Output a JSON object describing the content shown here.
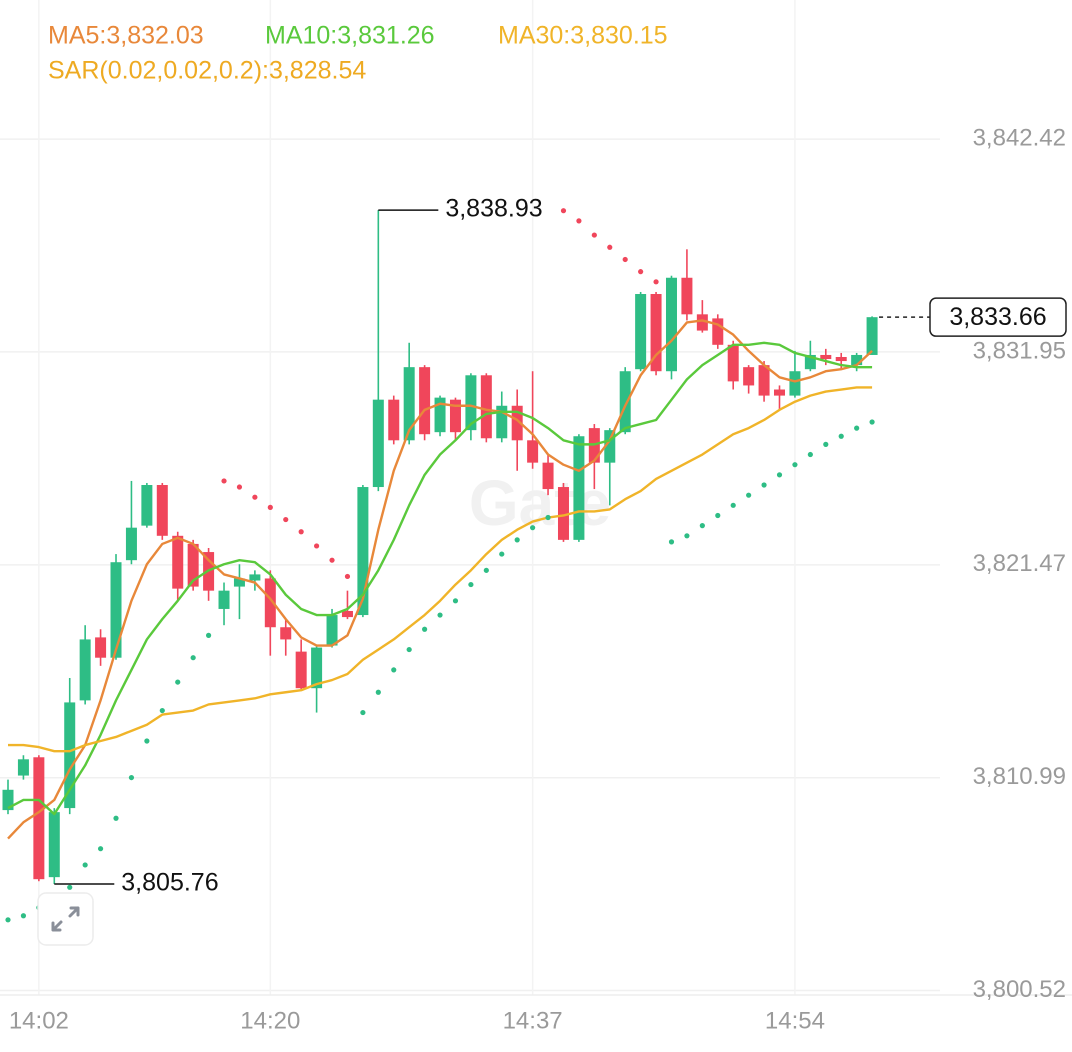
{
  "chart_data": {
    "type": "candlestick",
    "watermark": "Gate",
    "up_color": "#2ebd85",
    "down_color": "#f0465b",
    "categories": [
      null,
      null,
      "14:02",
      null,
      null,
      null,
      null,
      null,
      null,
      null,
      null,
      null,
      null,
      null,
      null,
      null,
      null,
      "14:20",
      null,
      null,
      null,
      null,
      null,
      null,
      null,
      null,
      null,
      null,
      null,
      null,
      null,
      null,
      null,
      null,
      "14:37",
      null,
      null,
      null,
      null,
      null,
      null,
      null,
      null,
      null,
      null,
      null,
      null,
      null,
      null,
      null,
      null,
      "14:54",
      null,
      null,
      null,
      null,
      null
    ],
    "open": [
      3809.4,
      3811.1,
      3812.0,
      3806.1,
      3809.5,
      3814.8,
      3817.9,
      3816.9,
      3821.7,
      3823.4,
      3825.4,
      3822.9,
      3822.5,
      3822.1,
      3819.3,
      3820.4,
      3820.7,
      3820.8,
      3818.4,
      3817.2,
      3815.4,
      3817.5,
      3819.2,
      3819.0,
      3825.3,
      3829.6,
      3827.6,
      3831.2,
      3828.0,
      3829.6,
      3828.1,
      3830.8,
      3827.7,
      3829.3,
      3827.6,
      3826.5,
      3825.3,
      3822.7,
      3828.2,
      3826.5,
      3828.0,
      3831.1,
      3834.8,
      3831.0,
      3835.6,
      3833.8,
      3833.6,
      3832.3,
      3831.2,
      3831.3,
      3830.1,
      3829.8,
      3831.1,
      3831.8,
      3831.7,
      3831.3,
      3831.8
    ],
    "high": [
      3810.9,
      3812.1,
      3812.1,
      3809.5,
      3815.9,
      3818.5,
      3818.3,
      3822.0,
      3825.6,
      3825.5,
      3825.5,
      3823.1,
      3822.7,
      3822.3,
      3820.6,
      3821.5,
      3821.2,
      3821.2,
      3818.8,
      3817.8,
      3817.5,
      3819.3,
      3820.2,
      3825.4,
      3838.93,
      3829.8,
      3832.4,
      3831.3,
      3829.8,
      3829.7,
      3830.9,
      3830.9,
      3830.0,
      3830.1,
      3831.0,
      3826.9,
      3825.5,
      3827.9,
      3828.4,
      3828.2,
      3831.2,
      3834.9,
      3834.9,
      3835.7,
      3837.0,
      3834.5,
      3833.8,
      3832.5,
      3831.3,
      3831.5,
      3830.3,
      3832.0,
      3832.5,
      3832.1,
      3831.9,
      3831.9,
      3833.7
    ],
    "low": [
      3809.2,
      3810.9,
      3805.9,
      3805.76,
      3809.2,
      3814.6,
      3816.5,
      3816.8,
      3821.5,
      3823.3,
      3822.7,
      3819.7,
      3820.2,
      3819.7,
      3818.5,
      3818.8,
      3820.2,
      3817.0,
      3817.0,
      3815.3,
      3814.2,
      3817.4,
      3818.8,
      3818.9,
      3825.1,
      3827.4,
      3827.4,
      3827.6,
      3827.8,
      3827.6,
      3827.6,
      3827.5,
      3827.5,
      3826.1,
      3826.2,
      3824.9,
      3822.6,
      3822.6,
      3825.2,
      3824.4,
      3827.9,
      3831.0,
      3830.8,
      3830.6,
      3833.5,
      3832.9,
      3832.1,
      3830.1,
      3829.9,
      3829.5,
      3829.1,
      3829.7,
      3831.0,
      3831.3,
      3831.1,
      3831.0,
      3831.8
    ],
    "close": [
      3810.4,
      3811.9,
      3806.0,
      3809.3,
      3814.7,
      3817.8,
      3816.9,
      3821.6,
      3823.3,
      3825.4,
      3822.9,
      3820.3,
      3820.4,
      3820.2,
      3820.2,
      3820.8,
      3821.0,
      3818.4,
      3817.8,
      3815.4,
      3817.4,
      3819.0,
      3818.9,
      3825.3,
      3829.6,
      3827.6,
      3831.2,
      3827.9,
      3829.7,
      3828.0,
      3830.8,
      3827.7,
      3829.3,
      3827.6,
      3826.5,
      3825.2,
      3822.7,
      3827.8,
      3826.5,
      3828.1,
      3831.0,
      3834.8,
      3831.0,
      3835.6,
      3833.8,
      3833.0,
      3832.3,
      3830.5,
      3830.3,
      3829.8,
      3829.8,
      3831.0,
      3831.8,
      3831.6,
      3831.5,
      3831.8,
      3833.66
    ],
    "series": [
      {
        "name": "MA5:3,832.03",
        "color": "#e8883a",
        "style": "line",
        "values": [
          3808.0,
          3808.8,
          3809.3,
          3809.9,
          3811.4,
          3812.6,
          3814.8,
          3817.3,
          3819.7,
          3821.5,
          3822.5,
          3822.8,
          3822.5,
          3821.7,
          3821.0,
          3820.8,
          3820.6,
          3819.8,
          3818.8,
          3817.9,
          3817.5,
          3817.5,
          3818.0,
          3819.8,
          3823.2,
          3826.1,
          3828.1,
          3829.1,
          3829.4,
          3829.3,
          3829.3,
          3829.1,
          3829.0,
          3828.6,
          3827.9,
          3826.9,
          3826.4,
          3826.1,
          3826.6,
          3827.6,
          3829.3,
          3830.8,
          3831.8,
          3832.5,
          3833.4,
          3833.5,
          3833.3,
          3832.8,
          3832.0,
          3831.3,
          3830.7,
          3830.5,
          3830.7,
          3831.0,
          3831.1,
          3831.3,
          3832.0
        ]
      },
      {
        "name": "MA10:3,831.26",
        "color": "#5ac93c",
        "style": "line",
        "values": [
          3809.5,
          3809.9,
          3809.9,
          3809.2,
          3810.4,
          3811.6,
          3813.1,
          3814.8,
          3816.3,
          3817.8,
          3818.8,
          3819.7,
          3820.7,
          3821.2,
          3821.5,
          3821.7,
          3821.6,
          3821.0,
          3820.0,
          3819.3,
          3819.0,
          3819.0,
          3819.3,
          3820.0,
          3821.2,
          3822.7,
          3824.4,
          3825.9,
          3826.9,
          3827.6,
          3828.4,
          3828.9,
          3829.0,
          3829.0,
          3828.7,
          3828.2,
          3827.6,
          3827.4,
          3827.4,
          3827.6,
          3828.2,
          3828.4,
          3828.6,
          3829.6,
          3830.6,
          3831.3,
          3831.8,
          3832.3,
          3832.3,
          3832.4,
          3832.3,
          3831.9,
          3831.7,
          3831.5,
          3831.3,
          3831.2,
          3831.2
        ]
      },
      {
        "name": "MA30:3,830.15",
        "color": "#f0b429",
        "style": "line",
        "values": [
          3812.6,
          3812.6,
          3812.5,
          3812.3,
          3812.3,
          3812.6,
          3812.8,
          3813.0,
          3813.3,
          3813.6,
          3814.1,
          3814.2,
          3814.3,
          3814.6,
          3814.7,
          3814.8,
          3814.9,
          3815.1,
          3815.2,
          3815.3,
          3815.6,
          3815.8,
          3816.1,
          3816.8,
          3817.3,
          3817.8,
          3818.4,
          3819.0,
          3819.7,
          3820.5,
          3821.2,
          3822.0,
          3822.7,
          3823.2,
          3823.6,
          3823.8,
          3823.9,
          3824.1,
          3824.1,
          3824.2,
          3824.7,
          3825.1,
          3825.7,
          3826.1,
          3826.5,
          3826.9,
          3827.4,
          3827.9,
          3828.2,
          3828.6,
          3829.1,
          3829.5,
          3829.8,
          3830.0,
          3830.1,
          3830.2,
          3830.2
        ]
      },
      {
        "name": "SAR(0.02,0.02,0.2):3,828.54",
        "color": "#eeaa22",
        "style": "dots",
        "values": [
          3804.0,
          3804.2,
          3804.6,
          3805.0,
          3805.6,
          3806.7,
          3807.5,
          3809.0,
          3811.0,
          3812.8,
          3814.3,
          3815.7,
          3816.9,
          3818.0,
          3825.6,
          3825.3,
          3824.8,
          3824.3,
          3823.7,
          3823.1,
          3822.4,
          3821.7,
          3820.9,
          3814.2,
          3815.2,
          3816.3,
          3817.3,
          3818.3,
          3819.0,
          3819.7,
          3820.5,
          3821.2,
          3822.0,
          3822.7,
          3823.3,
          3823.8,
          3838.9,
          3838.4,
          3837.7,
          3837.1,
          3836.5,
          3835.9,
          3835.4,
          3822.6,
          3822.9,
          3823.4,
          3823.9,
          3824.4,
          3824.9,
          3825.4,
          3825.9,
          3826.4,
          3826.9,
          3827.4,
          3827.8,
          3828.2,
          3828.5
        ]
      }
    ],
    "high_label": {
      "value": 3838.93,
      "label": "3,838.93"
    },
    "low_label": {
      "value": 3805.76,
      "label": "3,805.76"
    },
    "last_price": {
      "value": 3833.66,
      "label": "3,833.66"
    },
    "ylim": [
      3800.3,
      3849.27
    ],
    "yticks": [
      {
        "value": 3842.42,
        "label": "3,842.42"
      },
      {
        "value": 3831.95,
        "label": "3,831.95"
      },
      {
        "value": 3821.47,
        "label": "3,821.47"
      },
      {
        "value": 3810.99,
        "label": "3,810.99"
      },
      {
        "value": 3800.52,
        "label": "3,800.52"
      }
    ],
    "grid": true
  }
}
